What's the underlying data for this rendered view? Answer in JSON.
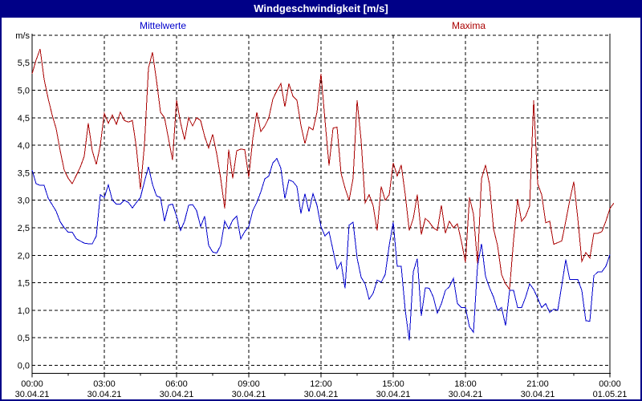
{
  "window": {
    "title": "Windgeschwindigkeit [m/s]"
  },
  "legend": {
    "mean_label": "Mittelwerte",
    "max_label": "Maxima"
  },
  "axis": {
    "unit_label": "m/s"
  },
  "colors": {
    "titlebar": "#000087",
    "window_border": "#000087",
    "mean_series": "#0000CC",
    "max_series": "#AA0000",
    "grid": "#000000",
    "background": "#FFFFFF"
  },
  "chart_data": {
    "type": "line",
    "title": "Windgeschwindigkeit [m/s]",
    "ylabel": "m/s",
    "y_range": [
      0,
      6
    ],
    "y_tick_step": 0.5,
    "y_tick_labels": [
      "0,0",
      "0,5",
      "1,0",
      "1,5",
      "2,0",
      "2,5",
      "3,0",
      "3,5",
      "4,0",
      "4,5",
      "5,0",
      "5,5"
    ],
    "x_tick_interval_hours": 3,
    "x_ticks": [
      {
        "time": "00:00",
        "date": "30.04.21"
      },
      {
        "time": "03:00",
        "date": "30.04.21"
      },
      {
        "time": "06:00",
        "date": "30.04.21"
      },
      {
        "time": "09:00",
        "date": "30.04.21"
      },
      {
        "time": "12:00",
        "date": "30.04.21"
      },
      {
        "time": "15:00",
        "date": "30.04.21"
      },
      {
        "time": "18:00",
        "date": "30.04.21"
      },
      {
        "time": "21:00",
        "date": "30.04.21"
      },
      {
        "time": "00:00",
        "date": "01.05.21"
      }
    ],
    "grid": true,
    "legend_position": "top",
    "sample_interval_minutes": 10,
    "series": [
      {
        "name": "Maxima",
        "color": "#AA0000",
        "values": [
          5.3,
          5.55,
          5.75,
          5.2,
          4.85,
          4.55,
          4.3,
          3.9,
          3.55,
          3.4,
          3.3,
          3.45,
          3.6,
          3.8,
          4.4,
          3.9,
          3.65,
          4.0,
          4.58,
          4.4,
          4.55,
          4.38,
          4.6,
          4.45,
          4.42,
          4.45,
          3.95,
          3.2,
          4.0,
          5.4,
          5.69,
          5.18,
          4.6,
          4.5,
          4.12,
          3.73,
          4.82,
          4.41,
          4.1,
          4.5,
          4.35,
          4.5,
          4.45,
          4.16,
          3.95,
          4.2,
          3.85,
          3.4,
          2.85,
          3.92,
          3.4,
          3.9,
          3.93,
          3.92,
          3.42,
          4.12,
          4.6,
          4.25,
          4.35,
          4.5,
          4.84,
          4.99,
          5.12,
          4.7,
          5.12,
          4.89,
          4.82,
          4.36,
          4.03,
          4.33,
          4.28,
          4.6,
          5.3,
          4.45,
          3.63,
          4.31,
          4.33,
          3.49,
          3.22,
          3.0,
          3.4,
          4.82,
          4.09,
          2.95,
          3.1,
          2.9,
          2.45,
          3.25,
          3.0,
          3.1,
          3.68,
          3.44,
          3.64,
          3.1,
          2.45,
          2.67,
          3.1,
          2.38,
          2.67,
          2.6,
          2.5,
          2.45,
          2.91,
          2.4,
          2.62,
          2.5,
          2.57,
          2.25,
          1.87,
          3.05,
          2.75,
          1.85,
          3.39,
          3.64,
          3.29,
          2.48,
          2.18,
          1.65,
          1.48,
          1.38,
          2.28,
          3.02,
          2.62,
          2.71,
          2.9,
          4.82,
          3.3,
          3.1,
          2.59,
          2.62,
          2.2,
          2.23,
          2.26,
          2.62,
          3.0,
          3.34,
          2.67,
          1.89,
          2.05,
          1.95,
          2.4,
          2.4,
          2.43,
          2.62,
          2.85,
          2.95
        ]
      },
      {
        "name": "Mittelwerte",
        "color": "#0000CC",
        "values": [
          3.55,
          3.3,
          3.27,
          3.27,
          3.04,
          2.92,
          2.8,
          2.61,
          2.5,
          2.42,
          2.42,
          2.3,
          2.26,
          2.22,
          2.21,
          2.21,
          2.35,
          3.1,
          3.05,
          3.28,
          3.0,
          2.93,
          2.93,
          3.0,
          2.96,
          2.86,
          2.96,
          3.05,
          3.34,
          3.61,
          3.29,
          3.08,
          3.05,
          2.62,
          2.91,
          2.93,
          2.71,
          2.45,
          2.62,
          2.91,
          2.92,
          2.81,
          2.52,
          2.71,
          2.18,
          2.06,
          2.04,
          2.18,
          2.62,
          2.48,
          2.64,
          2.71,
          2.3,
          2.43,
          2.52,
          2.81,
          2.96,
          3.15,
          3.39,
          3.44,
          3.68,
          3.76,
          3.58,
          3.03,
          3.37,
          3.34,
          3.25,
          2.76,
          3.12,
          2.79,
          3.12,
          2.91,
          2.52,
          2.35,
          2.43,
          2.09,
          1.75,
          1.87,
          1.4,
          2.55,
          2.6,
          1.95,
          1.6,
          1.48,
          1.2,
          1.31,
          1.55,
          1.51,
          1.65,
          2.18,
          2.6,
          1.8,
          1.8,
          1.0,
          0.45,
          1.7,
          1.94,
          0.9,
          1.41,
          1.4,
          1.24,
          0.95,
          1.12,
          1.36,
          1.43,
          1.58,
          1.12,
          1.05,
          1.05,
          0.7,
          0.6,
          1.8,
          2.21,
          1.62,
          1.41,
          1.24,
          1.0,
          1.05,
          0.72,
          1.36,
          1.36,
          1.05,
          1.05,
          1.24,
          1.48,
          1.38,
          1.22,
          1.05,
          1.12,
          0.96,
          1.02,
          1.0,
          1.45,
          1.92,
          1.56,
          1.56,
          1.56,
          1.36,
          0.81,
          0.8,
          1.63,
          1.7,
          1.7,
          1.8,
          2.01
        ]
      }
    ]
  }
}
